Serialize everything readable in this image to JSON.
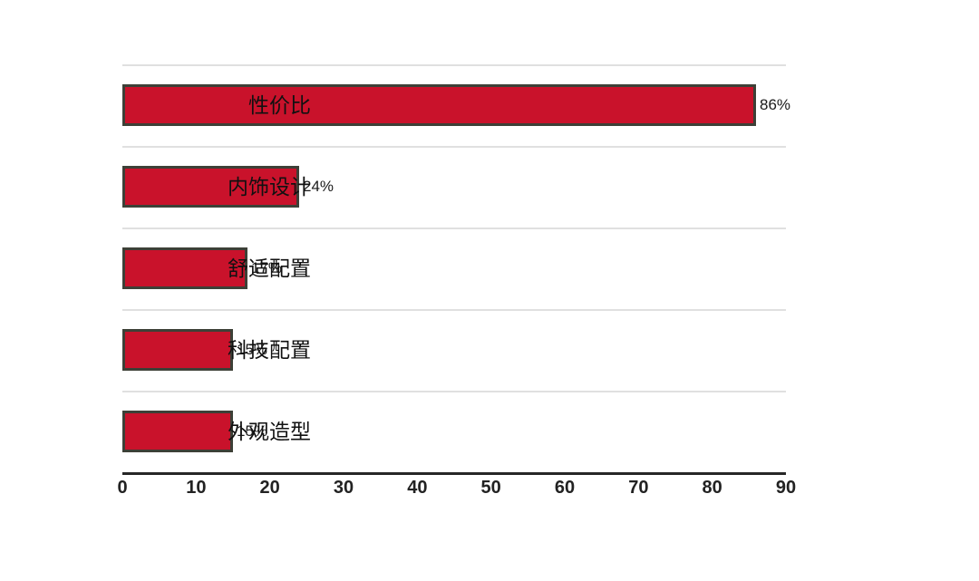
{
  "chart_data": {
    "type": "bar",
    "orientation": "horizontal",
    "categories": [
      "性价比",
      "内饰设计",
      "舒适配置",
      "科技配置",
      "外观造型"
    ],
    "values": [
      86,
      24,
      17,
      15,
      15
    ],
    "value_labels": [
      "86%",
      "24%",
      "17%",
      "15%",
      "15%"
    ],
    "title": "",
    "xlabel": "",
    "ylabel": "",
    "xlim": [
      0,
      90
    ],
    "x_ticks": [
      0,
      10,
      20,
      30,
      40,
      50,
      60,
      70,
      80,
      90
    ],
    "grid": "category-split-lines",
    "legend": "none",
    "colors": {
      "bar_fill": "#C9122B",
      "bar_border": "#3D4037",
      "axis_line": "#262626",
      "gridline": "#e0e0e0",
      "category_text": "#111111",
      "value_text": "#1a1a1a",
      "tick_text": "#222222",
      "background": "#ffffff"
    }
  }
}
